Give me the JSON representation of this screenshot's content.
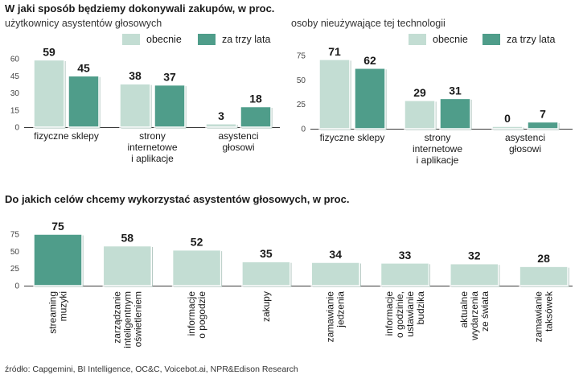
{
  "section1_title": "W jaki sposób będziemy dokonywali zakupów, w proc.",
  "section2_title": "Do jakich celów chcemy wykorzystać asystentów głosowych, w proc.",
  "source": "źródło: Capgemini, BI Intelligence, OC&C, Voicebot.ai, NPR&Edison Research",
  "colors": {
    "now": "#c3ddd3",
    "later": "#4f9d8a",
    "bar_edge": "#ffffff",
    "shadow": "#9fb9b0"
  },
  "chart_data": [
    {
      "type": "bar",
      "title": "użytkownicy asystentów głosowych",
      "categories": [
        [
          "fizyczne sklepy"
        ],
        [
          "strony",
          "internetowe",
          "i aplikacje"
        ],
        [
          "asystenci",
          "głosowi"
        ]
      ],
      "series": [
        {
          "name": "obecnie",
          "values": [
            59,
            38,
            3
          ]
        },
        {
          "name": "za trzy lata",
          "values": [
            45,
            37,
            18
          ]
        }
      ],
      "ylim": [
        0,
        60
      ],
      "yticks": [
        0,
        15,
        30,
        45,
        60
      ],
      "ytick_labels": [
        "0",
        "15",
        "30",
        "45",
        "60"
      ]
    },
    {
      "type": "bar",
      "title": "osoby nieużywające tej technologii",
      "categories": [
        [
          "fizyczne sklepy"
        ],
        [
          "strony",
          "internetowe",
          "i aplikacje"
        ],
        [
          "asystenci",
          "głosowi"
        ]
      ],
      "series": [
        {
          "name": "obecnie",
          "values": [
            71,
            29,
            0
          ]
        },
        {
          "name": "za trzy lata",
          "values": [
            62,
            31,
            7
          ]
        }
      ],
      "ylim": [
        0,
        75
      ],
      "yticks": [
        0,
        25,
        50,
        75
      ],
      "ytick_labels": [
        "0",
        "25",
        "50",
        "75"
      ]
    },
    {
      "type": "bar",
      "title": "",
      "categories": [
        [
          "streaming",
          "muzyki"
        ],
        [
          "zarządzanie",
          "inteligentnym",
          "oświetleniem"
        ],
        [
          "informacje",
          "o pogodzie"
        ],
        [
          "zakupy"
        ],
        [
          "zamawianie",
          "jedzenia"
        ],
        [
          "informacje",
          "o godzinie,",
          "ustawianie",
          "budzika"
        ],
        [
          "aktualne",
          "wydarzenia",
          "ze świata"
        ],
        [
          "zamawianie",
          "taksówek"
        ]
      ],
      "values": [
        75,
        58,
        52,
        35,
        34,
        33,
        32,
        28
      ],
      "ylim": [
        0,
        75
      ],
      "yticks": [
        0,
        25,
        50,
        75
      ],
      "ytick_labels": [
        "0",
        "25",
        "50",
        "75"
      ]
    }
  ]
}
